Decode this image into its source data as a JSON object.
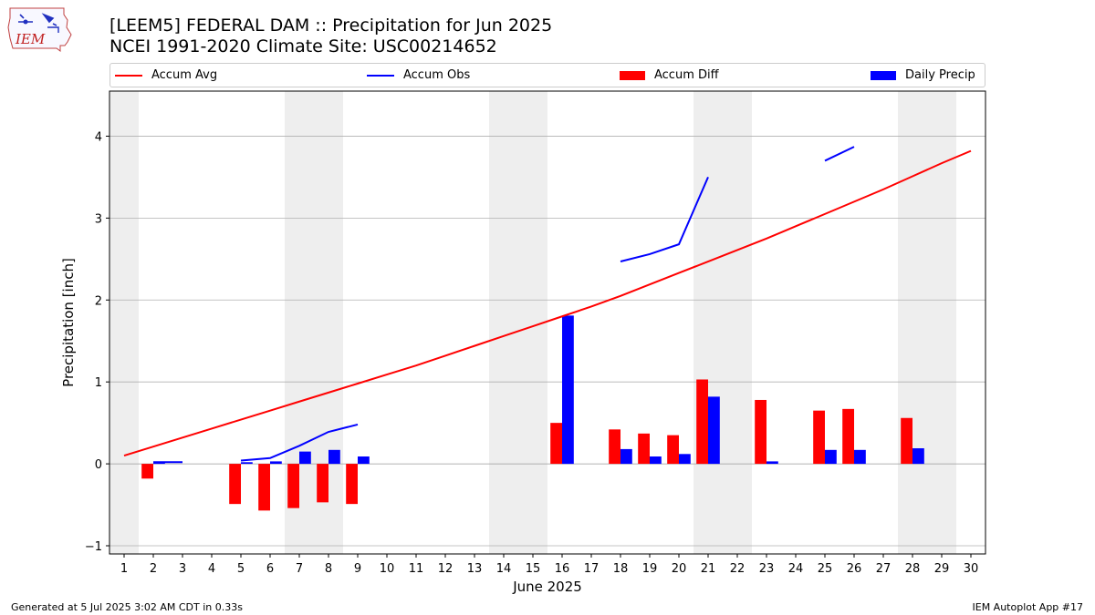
{
  "logo": {
    "text": "IEM"
  },
  "titles": {
    "line1": "[LEEM5] FEDERAL DAM :: Precipitation for Jun 2025",
    "line2": "NCEI 1991-2020 Climate Site: USC00214652"
  },
  "legend": [
    {
      "label": "Accum Avg",
      "color": "#ff0000",
      "kind": "line"
    },
    {
      "label": "Accum Obs",
      "color": "#0000ff",
      "kind": "line"
    },
    {
      "label": "Accum Diff",
      "color": "#ff0000",
      "kind": "bar"
    },
    {
      "label": "Daily Precip",
      "color": "#0000ff",
      "kind": "bar"
    }
  ],
  "footer": {
    "left": "Generated at 5 Jul 2025 3:02 AM CDT in 0.33s",
    "right": "IEM Autoplot App #17"
  },
  "chart_data": {
    "type": "bar",
    "xlabel": "June 2025",
    "ylabel": "Precipitation [inch]",
    "xlim": [
      0.5,
      30.5
    ],
    "ylim": [
      -1.1,
      4.55
    ],
    "x_ticks": [
      1,
      2,
      3,
      4,
      5,
      6,
      7,
      8,
      9,
      10,
      11,
      12,
      13,
      14,
      15,
      16,
      17,
      18,
      19,
      20,
      21,
      22,
      23,
      24,
      25,
      26,
      27,
      28,
      29,
      30
    ],
    "y_ticks": [
      -1,
      0,
      1,
      2,
      3,
      4
    ],
    "weekend_bands": [
      [
        0.5,
        1.5
      ],
      [
        6.5,
        8.5
      ],
      [
        13.5,
        15.5
      ],
      [
        20.5,
        22.5
      ],
      [
        27.5,
        29.5
      ]
    ],
    "grid": "horizontal",
    "legend_position": "top, above plot",
    "series": [
      {
        "name": "Accum Avg",
        "type": "line",
        "color": "#ff0000",
        "x": [
          1,
          2,
          3,
          4,
          5,
          6,
          7,
          8,
          9,
          10,
          11,
          12,
          13,
          14,
          15,
          16,
          17,
          18,
          19,
          20,
          21,
          22,
          23,
          24,
          25,
          26,
          27,
          28,
          29,
          30
        ],
        "values": [
          0.1,
          0.21,
          0.32,
          0.43,
          0.54,
          0.65,
          0.76,
          0.87,
          0.98,
          1.09,
          1.2,
          1.32,
          1.44,
          1.56,
          1.68,
          1.8,
          1.92,
          2.05,
          2.19,
          2.33,
          2.47,
          2.61,
          2.75,
          2.9,
          3.05,
          3.2,
          3.35,
          3.51,
          3.67,
          3.82
        ]
      },
      {
        "name": "Accum Obs",
        "type": "line",
        "color": "#0000ff",
        "segments": [
          {
            "x": [
              2,
              3
            ],
            "values": [
              0.02,
              0.02
            ]
          },
          {
            "x": [
              5,
              6,
              7,
              8,
              9
            ],
            "values": [
              0.04,
              0.07,
              0.22,
              0.39,
              0.48
            ]
          },
          {
            "x": [
              18,
              19,
              20,
              21
            ],
            "values": [
              2.47,
              2.56,
              2.68,
              3.5
            ]
          },
          {
            "x": [
              25,
              26
            ],
            "values": [
              3.7,
              3.87
            ]
          }
        ]
      },
      {
        "name": "Accum Diff",
        "type": "bar",
        "color": "#ff0000",
        "x": [
          2,
          5,
          6,
          7,
          8,
          9,
          16,
          18,
          19,
          20,
          21,
          23,
          25,
          26,
          28
        ],
        "values": [
          -0.18,
          -0.49,
          -0.57,
          -0.54,
          -0.47,
          -0.49,
          0.5,
          0.42,
          0.37,
          0.35,
          1.03,
          0.78,
          0.65,
          0.67,
          0.56
        ]
      },
      {
        "name": "Daily Precip",
        "type": "bar",
        "color": "#0000ff",
        "x": [
          2,
          5,
          6,
          7,
          8,
          9,
          16,
          18,
          19,
          20,
          21,
          23,
          25,
          26,
          28
        ],
        "values": [
          0.02,
          0.02,
          0.03,
          0.15,
          0.17,
          0.09,
          1.81,
          0.18,
          0.09,
          0.12,
          0.82,
          0.03,
          0.17,
          0.17,
          0.19
        ]
      }
    ]
  }
}
